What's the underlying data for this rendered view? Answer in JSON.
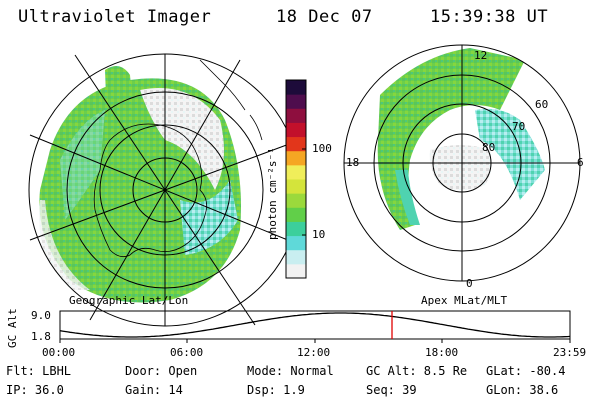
{
  "header": {
    "title": "Ultraviolet Imager",
    "date": "18 Dec 07",
    "time": "15:39:38 UT"
  },
  "geo_map": {
    "caption": "Geographic Lat/Lon"
  },
  "apex_map": {
    "caption": "Apex MLat/MLT",
    "lat_labels": [
      "60",
      "70",
      "80"
    ],
    "mlt_labels": {
      "top": "12",
      "left": "18",
      "right": "6",
      "bottom": "0"
    }
  },
  "colorbar": {
    "unit_label": "photon cm⁻²s⁻¹",
    "ticks": [
      "100",
      "10"
    ],
    "colors": [
      "#f2f2f2",
      "#c9eef0",
      "#5fd9d9",
      "#3ccf9c",
      "#61cf49",
      "#9bd93c",
      "#d4e43b",
      "#f0ee5a",
      "#f5a623",
      "#e2361b",
      "#c2102b",
      "#8e0e3e",
      "#4e0d4d",
      "#1d0b3a"
    ]
  },
  "altitude_plot": {
    "ylabel": "GC Alt",
    "y_ticks": [
      "9.0",
      "1.8"
    ],
    "x_ticks": [
      "00:00",
      "06:00",
      "12:00",
      "18:00",
      "23:59"
    ],
    "marker_color": "#e00000"
  },
  "info": {
    "flt": "Flt: LBHL",
    "ip": "IP: 36.0",
    "door": "Door: Open",
    "gain": "Gain: 14",
    "mode": "Mode: Normal",
    "dsp": "Dsp:     1.9",
    "gcalt": "GC Alt: 8.5 Re",
    "seq": "Seq: 39",
    "glat": "GLat: -80.4",
    "glon": "GLon:  38.6"
  }
}
